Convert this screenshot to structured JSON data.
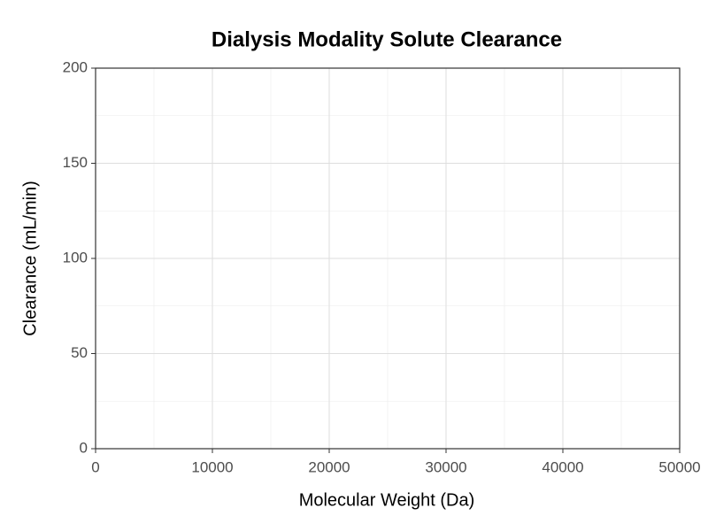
{
  "chart_data": {
    "type": "line",
    "title": "Dialysis Modality Solute Clearance",
    "x_label": "Molecular Weight (Da)",
    "y_label": "Clearance (mL/min)",
    "xlim": [
      0,
      50000
    ],
    "xticks": [
      0,
      10000,
      20000,
      30000,
      40000,
      50000
    ],
    "ylim": [
      0,
      200
    ],
    "yticks": [
      0,
      50,
      100,
      150,
      200
    ],
    "grid": true,
    "series": []
  }
}
